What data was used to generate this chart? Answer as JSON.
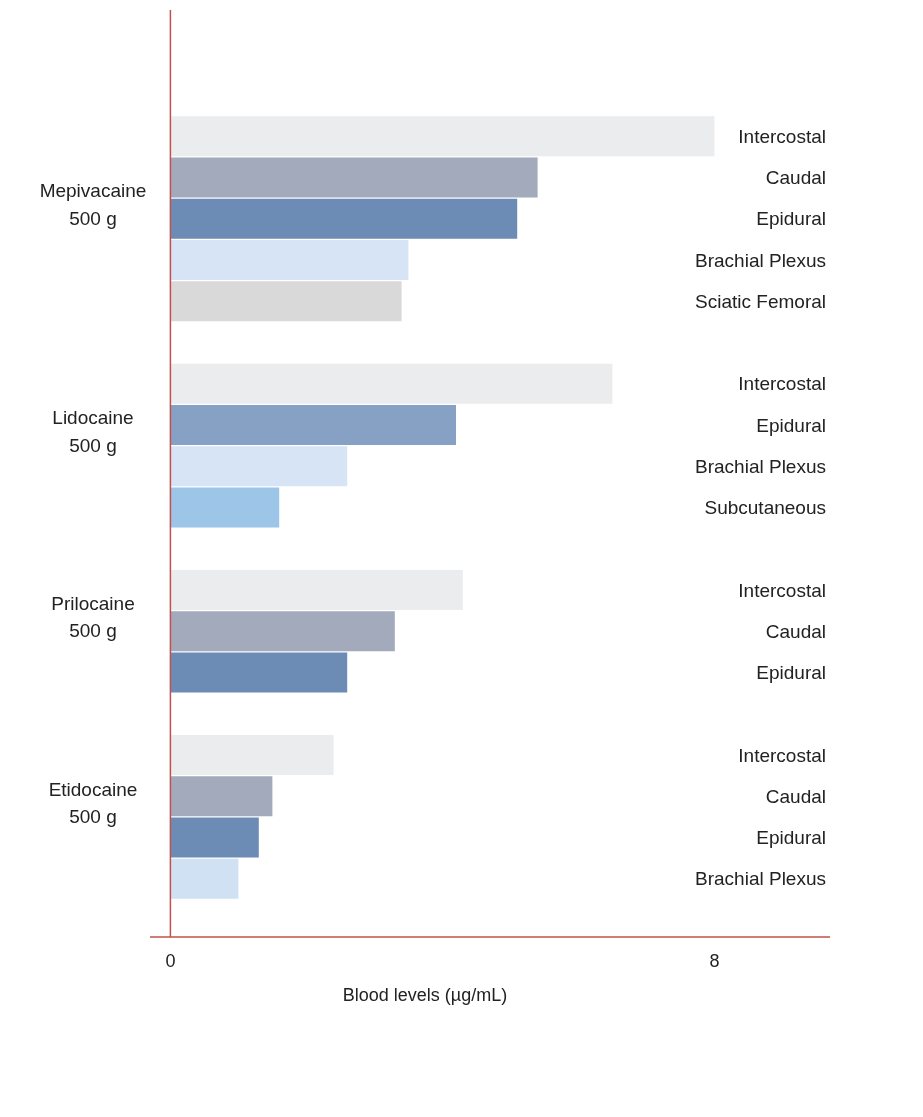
{
  "chart_data": {
    "type": "bar",
    "orientation": "horizontal",
    "xlabel": "Blood levels (µg/mL)",
    "categories": [
      "Intercostal",
      "Caudal",
      "Epidural",
      "Brachial Plexus",
      "Sciatic Femoral",
      null,
      "Intercostal",
      "Epidural",
      "Brachial Plexus",
      "Subcutaneous",
      null,
      "Intercostal",
      "Caudal",
      "Epidural",
      null,
      "Intercostal",
      "Caudal",
      "Epidural",
      "Brachial Plexus"
    ],
    "values": [
      8.0,
      5.4,
      5.1,
      3.5,
      3.4,
      null,
      6.5,
      4.2,
      2.6,
      1.6,
      null,
      4.3,
      3.3,
      2.6,
      null,
      2.4,
      1.5,
      1.3,
      1.0
    ],
    "colors": [
      "#ebecee",
      "#a2aabb",
      "#6d8cb5",
      "#d6e4f5",
      "#d9d9d9",
      null,
      "#ebecee",
      "#87a1c4",
      "#d6e4f5",
      "#9cc5e8",
      null,
      "#ebecee",
      "#a2aabb",
      "#6d8cb5",
      null,
      "#ebecee",
      "#a2aabb",
      "#6d8cb5",
      "#d0e1f4"
    ],
    "xlim": [
      -0.3,
      9.7
    ],
    "ref_lines": [
      {
        "axis": "x",
        "value": 0,
        "color": "#c0504d"
      }
    ],
    "xticks": [
      0,
      8
    ],
    "annotations": [
      "Mepivacaine\n500 g",
      "Lidocaine\n500 g",
      "Prilocaine\n500 g",
      "Etidocaine\n500 g"
    ]
  }
}
